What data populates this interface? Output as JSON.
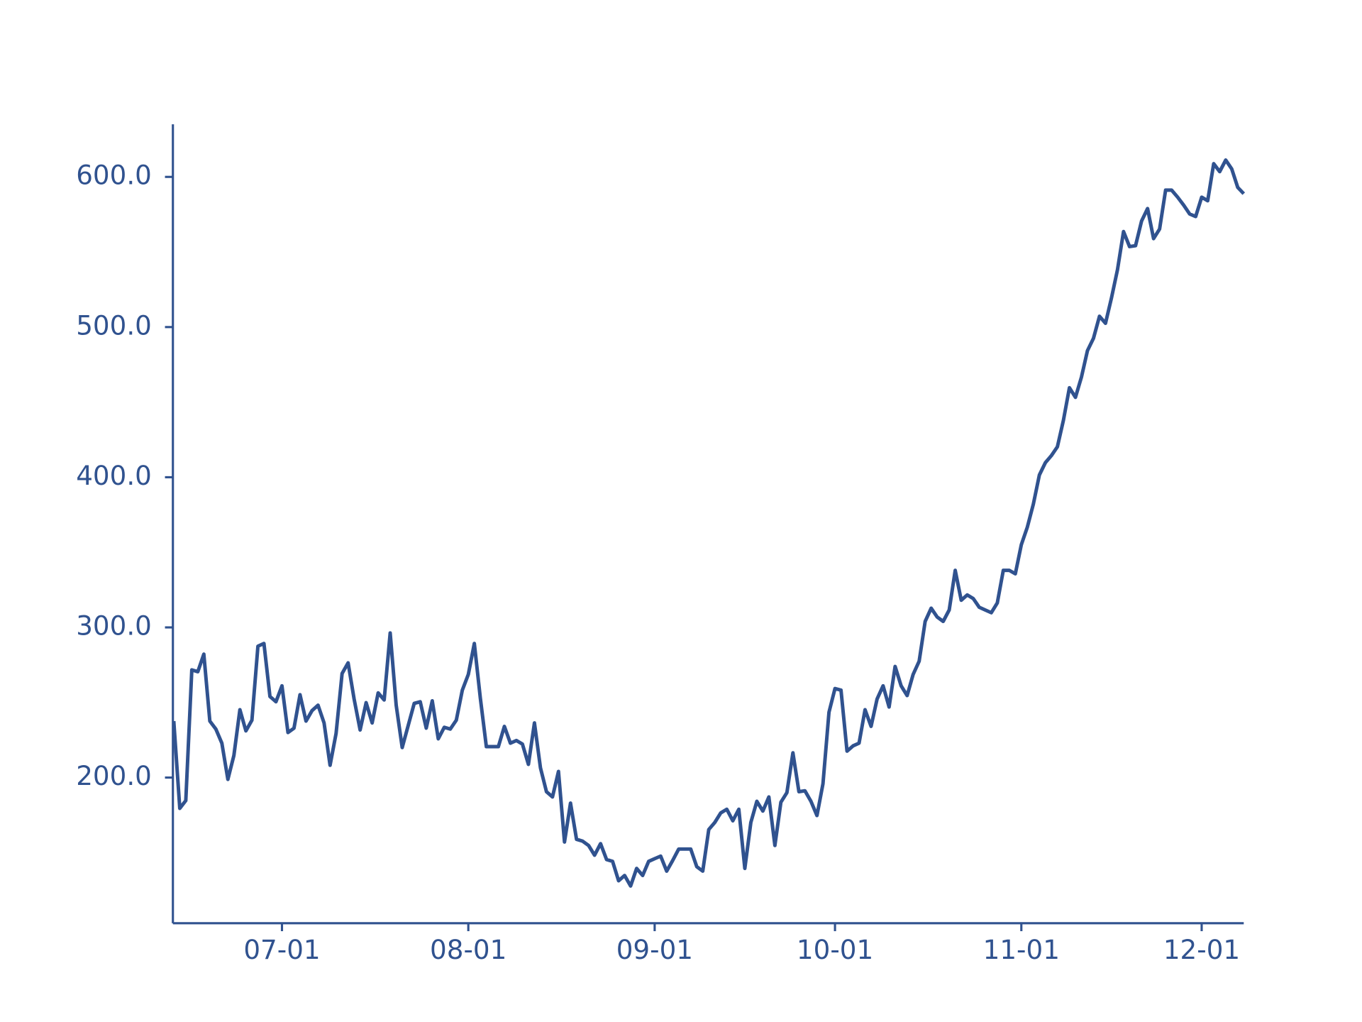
{
  "chart_data": {
    "type": "line",
    "color": "#30528f",
    "x": [
      "06-13",
      "06-14",
      "06-15",
      "06-16",
      "06-17",
      "06-18",
      "06-19",
      "06-20",
      "06-21",
      "06-22",
      "06-23",
      "06-24",
      "06-25",
      "06-26",
      "06-27",
      "06-28",
      "06-29",
      "06-30",
      "07-01",
      "07-02",
      "07-03",
      "07-04",
      "07-05",
      "07-06",
      "07-07",
      "07-08",
      "07-09",
      "07-10",
      "07-11",
      "07-12",
      "07-13",
      "07-14",
      "07-15",
      "07-16",
      "07-17",
      "07-18",
      "07-19",
      "07-20",
      "07-21",
      "07-22",
      "07-23",
      "07-24",
      "07-25",
      "07-26",
      "07-27",
      "07-28",
      "07-29",
      "07-30",
      "07-31",
      "08-01",
      "08-02",
      "08-03",
      "08-04",
      "08-05",
      "08-06",
      "08-07",
      "08-08",
      "08-09",
      "08-10",
      "08-11",
      "08-12",
      "08-13",
      "08-14",
      "08-15",
      "08-16",
      "08-17",
      "08-18",
      "08-19",
      "08-20",
      "08-21",
      "08-22",
      "08-23",
      "08-24",
      "08-25",
      "08-26",
      "08-27",
      "08-28",
      "08-29",
      "08-30",
      "08-31",
      "09-01",
      "09-02",
      "09-03",
      "09-04",
      "09-05",
      "09-06",
      "09-07",
      "09-08",
      "09-09",
      "09-10",
      "09-11",
      "09-12",
      "09-13",
      "09-14",
      "09-15",
      "09-16",
      "09-17",
      "09-18",
      "09-19",
      "09-20",
      "09-21",
      "09-22",
      "09-23",
      "09-24",
      "09-25",
      "09-26",
      "09-27",
      "09-28",
      "09-29",
      "09-30",
      "10-01",
      "10-02",
      "10-03",
      "10-04",
      "10-05",
      "10-06",
      "10-07",
      "10-08",
      "10-09",
      "10-10",
      "10-11",
      "10-12",
      "10-13",
      "10-14",
      "10-15",
      "10-16",
      "10-17",
      "10-18",
      "10-19",
      "10-20",
      "10-21",
      "10-22",
      "10-23",
      "10-24",
      "10-25",
      "10-26",
      "10-27",
      "10-28",
      "10-29",
      "10-30",
      "10-31",
      "11-01",
      "11-02",
      "11-03",
      "11-04",
      "11-05",
      "11-06",
      "11-07",
      "11-08",
      "11-09",
      "11-10",
      "11-11",
      "11-12",
      "11-13",
      "11-14",
      "11-15",
      "11-16",
      "11-17",
      "11-18",
      "11-19",
      "11-20",
      "11-21",
      "11-22",
      "11-23",
      "11-24",
      "11-25",
      "11-26",
      "11-27",
      "11-28",
      "11-29",
      "11-30",
      "12-01",
      "12-02",
      "12-03",
      "12-04",
      "12-05",
      "12-06",
      "12-07",
      "12-08"
    ],
    "values": [
      237.6,
      179.5,
      184.7,
      271.7,
      270.5,
      282.2,
      237.6,
      232.3,
      222.9,
      198.8,
      214.7,
      245.2,
      231.1,
      238.2,
      287.5,
      289.3,
      254.0,
      250.5,
      261.1,
      230.0,
      232.9,
      255.2,
      237.6,
      244.6,
      248.2,
      236.4,
      208.2,
      229.4,
      269.3,
      276.4,
      252.3,
      231.7,
      249.9,
      236.4,
      256.4,
      251.7,
      296.3,
      248.2,
      220.0,
      234.7,
      249.4,
      250.5,
      232.9,
      251.1,
      225.8,
      233.5,
      232.3,
      238.2,
      258.2,
      268.7,
      289.3,
      252.9,
      220.6,
      220.6,
      220.6,
      234.1,
      222.9,
      224.7,
      222.3,
      208.8,
      236.4,
      206.5,
      190.6,
      187.1,
      204.1,
      157.1,
      183.0,
      158.9,
      157.7,
      154.8,
      148.3,
      156.0,
      145.4,
      144.2,
      131.3,
      134.8,
      127.8,
      139.5,
      134.8,
      144.2,
      146.0,
      147.7,
      137.7,
      144.8,
      152.4,
      152.4,
      152.4,
      140.7,
      137.7,
      165.4,
      170.1,
      176.5,
      178.9,
      171.2,
      178.9,
      139.5,
      170.1,
      184.2,
      177.7,
      187.1,
      154.8,
      183.6,
      190.0,
      216.5,
      190.6,
      191.2,
      184.2,
      174.7,
      195.9,
      243.5,
      259.3,
      258.2,
      217.6,
      221.1,
      222.9,
      245.2,
      234.1,
      252.3,
      261.1,
      247.0,
      274.0,
      261.1,
      254.6,
      268.7,
      277.5,
      304.0,
      312.8,
      306.9,
      304.0,
      311.6,
      338.0,
      318.1,
      321.6,
      319.2,
      313.4,
      311.6,
      309.8,
      316.3,
      338.0,
      338.0,
      335.7,
      355.1,
      366.8,
      382.1,
      401.5,
      409.7,
      414.4,
      420.3,
      437.9,
      459.6,
      453.2,
      466.7,
      484.3,
      492.5,
      507.2,
      502.5,
      519.5,
      538.3,
      563.6,
      553.6,
      554.2,
      570.6,
      578.9,
      558.9,
      565.3,
      591.2,
      591.2,
      586.5,
      581.2,
      575.3,
      573.6,
      586.5,
      584.1,
      608.8,
      603.5,
      611.2,
      605.3,
      593.0,
      588.8
    ],
    "xlim": [
      "06-13",
      "12-08"
    ],
    "xticks": [
      "07-01",
      "08-01",
      "09-01",
      "10-01",
      "11-01",
      "12-01"
    ],
    "ylim": [
      103,
      635
    ],
    "yticks": [
      {
        "value": 200,
        "label": "200.0"
      },
      {
        "value": 300,
        "label": "300.0"
      },
      {
        "value": 400,
        "label": "400.0"
      },
      {
        "value": 500,
        "label": "500.0"
      },
      {
        "value": 600,
        "label": "600.0"
      }
    ]
  }
}
